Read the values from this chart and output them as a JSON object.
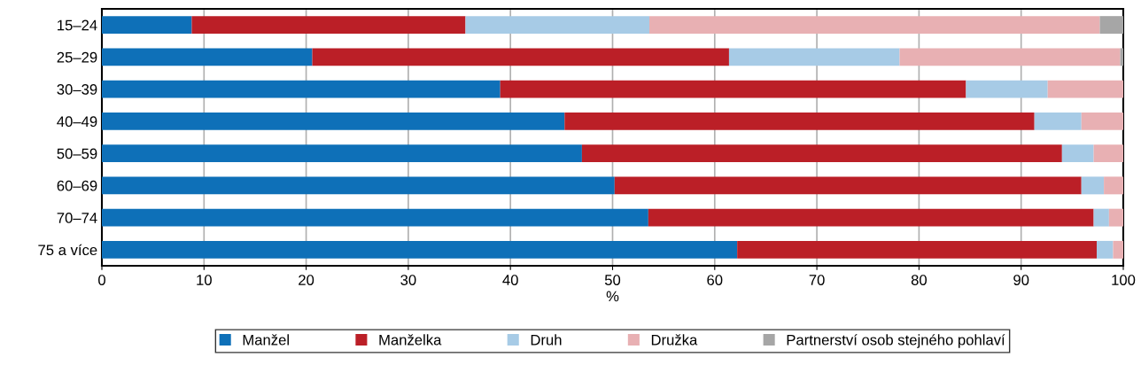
{
  "chart_data": {
    "type": "bar",
    "orientation": "horizontal",
    "stacked": true,
    "xlabel": "%",
    "xlim": [
      0,
      100
    ],
    "xticks": [
      0,
      10,
      20,
      30,
      40,
      50,
      60,
      70,
      80,
      90,
      100
    ],
    "grid": "x",
    "legend": "bottom",
    "categories": [
      "15–24",
      "25–29",
      "30–39",
      "40–49",
      "50–59",
      "60–69",
      "70–74",
      "75 a více"
    ],
    "series": [
      {
        "name": "Manžel",
        "color": "#0e70b8",
        "values": [
          8.8,
          20.6,
          39.0,
          45.3,
          47.0,
          50.2,
          53.5,
          62.2
        ]
      },
      {
        "name": "Manželka",
        "color": "#bb1f27",
        "values": [
          26.8,
          40.8,
          45.6,
          46.0,
          47.0,
          45.7,
          43.6,
          35.2
        ]
      },
      {
        "name": "Druh",
        "color": "#a7cbe6",
        "values": [
          18.0,
          16.7,
          8.0,
          4.6,
          3.1,
          2.2,
          1.5,
          1.6
        ]
      },
      {
        "name": "Družka",
        "color": "#e8b0b3",
        "values": [
          44.1,
          21.6,
          7.4,
          4.1,
          2.9,
          1.9,
          1.4,
          1.0
        ]
      },
      {
        "name": "Partnerství osob stejného pohlaví",
        "color": "#a6a6a6",
        "values": [
          2.3,
          0.3,
          0,
          0,
          0,
          0,
          0,
          0
        ]
      }
    ]
  }
}
